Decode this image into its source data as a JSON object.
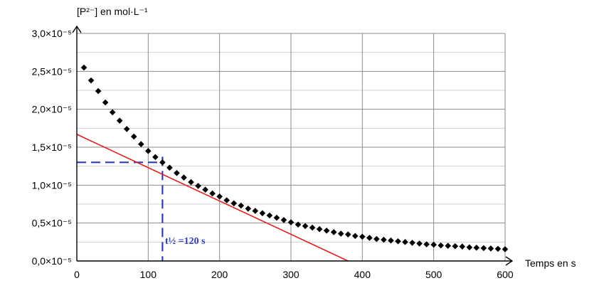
{
  "chart_data": {
    "type": "scatter",
    "ylabel": "[P²⁻] en mol·L⁻¹",
    "xlabel": "Temps en s",
    "xlim": [
      0,
      600
    ],
    "ylim": [
      0,
      3e-05
    ],
    "x_ticks": [
      0,
      100,
      200,
      300,
      400,
      500,
      600
    ],
    "x_tick_labels": [
      "0",
      "100",
      "200",
      "300",
      "400",
      "500",
      "600"
    ],
    "y_ticks": [
      0,
      5e-06,
      1e-05,
      1.5e-05,
      2e-05,
      2.5e-05,
      3e-05
    ],
    "y_tick_labels": [
      "0,0×10⁻⁵",
      "0,5×10⁻⁵",
      "1,0×10⁻⁵",
      "1,5×10⁻⁵",
      "2,0×10⁻⁵",
      "2,5×10⁻⁵",
      "3,0×10⁻⁵"
    ],
    "grid": true,
    "series": [
      {
        "marker": "diamond",
        "color": "#000000",
        "points": [
          [
            10,
            2.55e-05
          ],
          [
            20,
            2.38e-05
          ],
          [
            30,
            2.24e-05
          ],
          [
            40,
            2.09e-05
          ],
          [
            50,
            1.96e-05
          ],
          [
            60,
            1.85e-05
          ],
          [
            70,
            1.74e-05
          ],
          [
            80,
            1.64e-05
          ],
          [
            90,
            1.54e-05
          ],
          [
            100,
            1.45e-05
          ],
          [
            110,
            1.37e-05
          ],
          [
            120,
            1.3e-05
          ],
          [
            130,
            1.23e-05
          ],
          [
            140,
            1.16e-05
          ],
          [
            150,
            1.1e-05
          ],
          [
            160,
            1.04e-05
          ],
          [
            170,
            9.9e-06
          ],
          [
            180,
            9.4e-06
          ],
          [
            190,
            8.9e-06
          ],
          [
            200,
            8.5e-06
          ],
          [
            210,
            8e-06
          ],
          [
            220,
            7.6e-06
          ],
          [
            230,
            7.3e-06
          ],
          [
            240,
            6.9e-06
          ],
          [
            250,
            6.6e-06
          ],
          [
            260,
            6.3e-06
          ],
          [
            270,
            6e-06
          ],
          [
            280,
            5.7e-06
          ],
          [
            290,
            5.4e-06
          ],
          [
            300,
            5.1e-06
          ],
          [
            310,
            4.8e-06
          ],
          [
            320,
            4.6e-06
          ],
          [
            330,
            4.4e-06
          ],
          [
            340,
            4.2e-06
          ],
          [
            350,
            4e-06
          ],
          [
            360,
            3.8e-06
          ],
          [
            370,
            3.6e-06
          ],
          [
            380,
            3.5e-06
          ],
          [
            390,
            3.3e-06
          ],
          [
            400,
            3.2e-06
          ],
          [
            410,
            3.05e-06
          ],
          [
            420,
            2.9e-06
          ],
          [
            430,
            2.8e-06
          ],
          [
            440,
            2.7e-06
          ],
          [
            450,
            2.6e-06
          ],
          [
            460,
            2.5e-06
          ],
          [
            470,
            2.4e-06
          ],
          [
            480,
            2.3e-06
          ],
          [
            490,
            2.2e-06
          ],
          [
            500,
            2.15e-06
          ],
          [
            510,
            2.05e-06
          ],
          [
            520,
            2e-06
          ],
          [
            530,
            1.95e-06
          ],
          [
            540,
            1.9e-06
          ],
          [
            550,
            1.8e-06
          ],
          [
            560,
            1.75e-06
          ],
          [
            570,
            1.7e-06
          ],
          [
            580,
            1.65e-06
          ],
          [
            590,
            1.6e-06
          ],
          [
            600,
            1.55e-06
          ]
        ]
      }
    ],
    "tangent_line": {
      "color": "#e02020",
      "points": [
        [
          0,
          1.67e-05
        ],
        [
          380,
          0.0
        ]
      ]
    },
    "guides": {
      "color": "#2d3db8",
      "half_value_y": 1.3e-05,
      "half_life_x": 120,
      "label": "t½ =120 s"
    }
  }
}
